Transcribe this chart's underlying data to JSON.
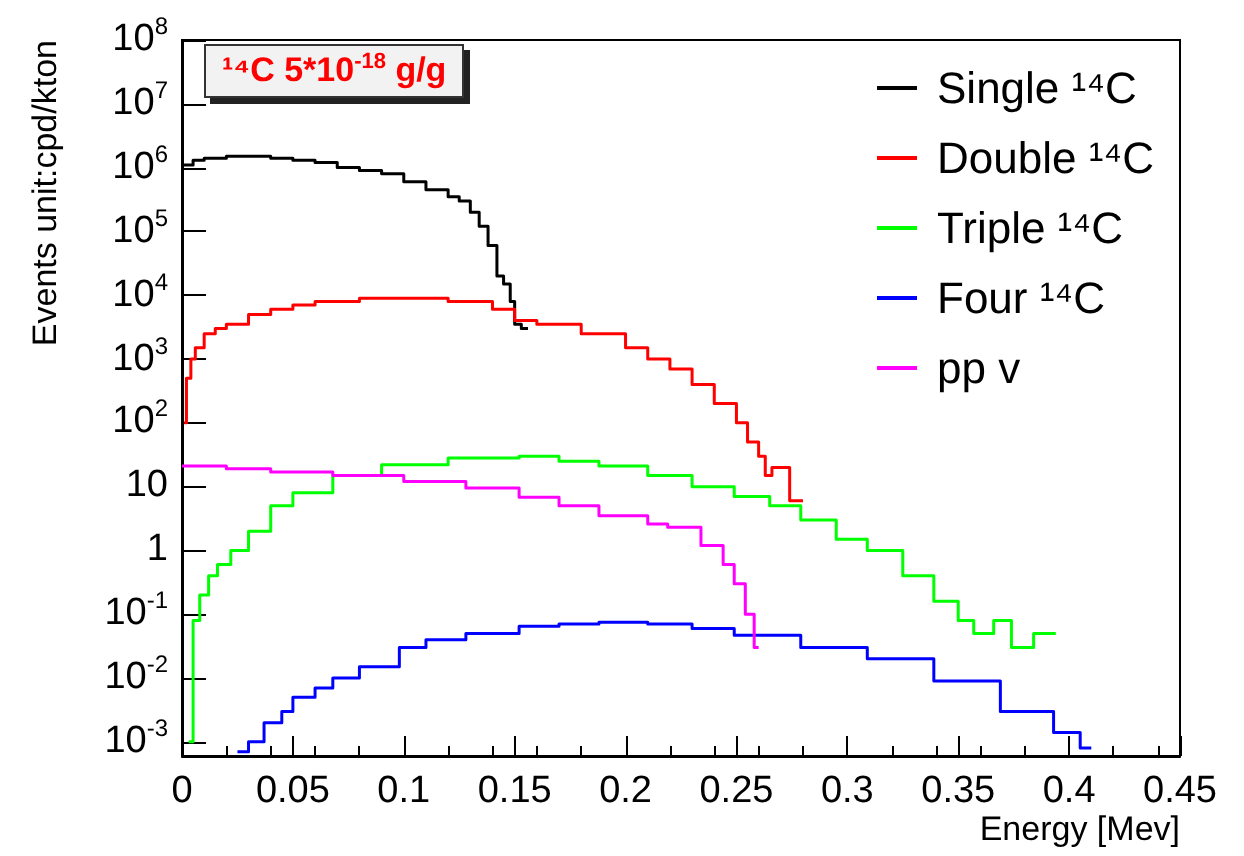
{
  "chart_data": {
    "type": "step",
    "xlabel": "Energy [Mev]",
    "ylabel": "Events unit:cpd/kton",
    "annotations": [
      "¹⁴C 5*10$^{-18}$ g/g"
    ],
    "xlim": [
      0,
      0.45
    ],
    "xticks": [
      0,
      0.05,
      0.1,
      0.15,
      0.2,
      0.25,
      0.3,
      0.35,
      0.4,
      0.45
    ],
    "ylim": [
      0.0006,
      100000000
    ],
    "yticks": [
      {
        "value": 0.001,
        "label": "10$^{-3}$"
      },
      {
        "value": 0.01,
        "label": "10$^{-2}$"
      },
      {
        "value": 0.1,
        "label": "10$^{-1}$"
      },
      1,
      10,
      {
        "value": 100,
        "label": "10$^{2}$"
      },
      {
        "value": 1000,
        "label": "10$^{3}$"
      },
      {
        "value": 10000,
        "label": "10$^{4}$"
      },
      {
        "value": 100000,
        "label": "10$^{5}$"
      },
      {
        "value": 1000000,
        "label": "10$^{6}$"
      },
      {
        "value": 10000000,
        "label": "10$^{7}$"
      },
      {
        "value": 100000000,
        "label": "10$^{8}$"
      }
    ],
    "log": "y",
    "grid": false,
    "legend": "top right",
    "marker": "none",
    "line_style": "solid",
    "series": [
      {
        "name": "Single ¹⁴C",
        "color": "#000000",
        "x": [
          0,
          0.005,
          0.01,
          0.02,
          0.03,
          0.04,
          0.05,
          0.06,
          0.07,
          0.08,
          0.09,
          0.1,
          0.11,
          0.12,
          0.125,
          0.13,
          0.134,
          0.138,
          0.142,
          0.145,
          0.148,
          0.15,
          0.153,
          0.156
        ],
        "values": [
          1100000,
          1300000,
          1400000,
          1500000,
          1500000,
          1400000,
          1300000,
          1200000,
          1000000,
          900000,
          800000,
          600000,
          450000,
          350000,
          300000,
          200000,
          120000,
          60000,
          20000,
          15000,
          8000,
          3500,
          3000,
          3000
        ]
      },
      {
        "name": "Double ¹⁴C",
        "color": "#ff0000",
        "x": [
          0.001,
          0.002,
          0.004,
          0.006,
          0.01,
          0.015,
          0.02,
          0.03,
          0.04,
          0.05,
          0.06,
          0.08,
          0.1,
          0.12,
          0.14,
          0.15,
          0.16,
          0.18,
          0.2,
          0.21,
          0.22,
          0.23,
          0.24,
          0.25,
          0.255,
          0.26,
          0.263,
          0.266,
          0.274,
          0.28
        ],
        "values": [
          100,
          500,
          1000,
          1500,
          2500,
          3000,
          3500,
          5000,
          6000,
          7000,
          8000,
          9000,
          9000,
          8000,
          6000,
          4000,
          3500,
          2500,
          1500,
          1000,
          700,
          400,
          200,
          100,
          50,
          30,
          15,
          20,
          6,
          6
        ]
      },
      {
        "name": "Triple ¹⁴C",
        "color": "#00ff00",
        "x": [
          0.003,
          0.005,
          0.008,
          0.012,
          0.016,
          0.022,
          0.03,
          0.04,
          0.05,
          0.068,
          0.09,
          0.12,
          0.152,
          0.17,
          0.188,
          0.21,
          0.23,
          0.249,
          0.265,
          0.279,
          0.295,
          0.309,
          0.325,
          0.339,
          0.35,
          0.357,
          0.366,
          0.374,
          0.384,
          0.394
        ],
        "values": [
          0.001,
          0.08,
          0.2,
          0.4,
          0.6,
          1,
          2,
          5,
          8,
          15,
          22,
          28,
          30,
          25,
          21,
          15,
          10,
          7,
          5,
          3,
          1.5,
          1,
          0.4,
          0.16,
          0.08,
          0.05,
          0.08,
          0.03,
          0.05,
          0.05
        ]
      },
      {
        "name": "Four ¹⁴C",
        "color": "#0000ff",
        "x": [
          0.025,
          0.03,
          0.037,
          0.045,
          0.05,
          0.06,
          0.068,
          0.08,
          0.098,
          0.11,
          0.128,
          0.152,
          0.17,
          0.188,
          0.21,
          0.23,
          0.249,
          0.279,
          0.309,
          0.339,
          0.369,
          0.393,
          0.405,
          0.41
        ],
        "values": [
          0.0007,
          0.001,
          0.002,
          0.003,
          0.005,
          0.007,
          0.01,
          0.015,
          0.03,
          0.04,
          0.05,
          0.065,
          0.07,
          0.075,
          0.07,
          0.06,
          0.047,
          0.03,
          0.02,
          0.009,
          0.003,
          0.0014,
          0.0008,
          0.0008
        ]
      },
      {
        "name": "pp v",
        "color": "#ff00ff",
        "x": [
          0,
          0.02,
          0.04,
          0.068,
          0.1,
          0.128,
          0.152,
          0.17,
          0.188,
          0.21,
          0.219,
          0.234,
          0.244,
          0.249,
          0.254,
          0.258,
          0.26
        ],
        "values": [
          21,
          19,
          17,
          15,
          12,
          9.5,
          6.8,
          5,
          3.5,
          2.6,
          2.3,
          1.2,
          0.6,
          0.3,
          0.1,
          0.03,
          0.03
        ]
      }
    ]
  }
}
